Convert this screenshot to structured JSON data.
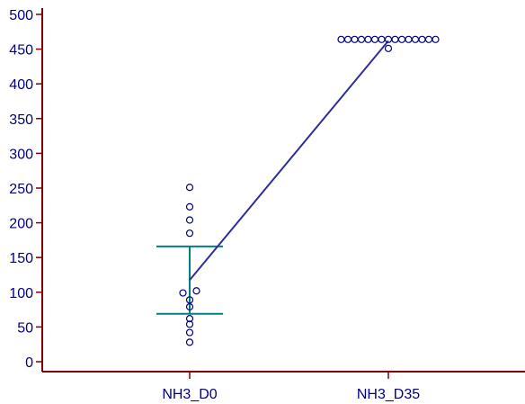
{
  "chart_data": {
    "type": "scatter",
    "title": "",
    "xlabel": "",
    "ylabel": "",
    "categories": [
      "NH3_D0",
      "NH3_D35"
    ],
    "ylim": [
      -8,
      510
    ],
    "yticks": [
      0,
      50,
      100,
      150,
      200,
      250,
      300,
      350,
      400,
      450,
      500
    ],
    "ytick_labels": [
      "0",
      "50",
      "100",
      "150",
      "200",
      "250",
      "300",
      "350",
      "400",
      "450",
      "500"
    ],
    "groups": [
      {
        "category": "NH3_D0",
        "points": [
          {
            "dx": 0,
            "y": 251
          },
          {
            "dx": 0,
            "y": 223
          },
          {
            "dx": 0,
            "y": 204
          },
          {
            "dx": 0,
            "y": 185
          },
          {
            "dx": -1,
            "y": 99
          },
          {
            "dx": 1,
            "y": 102
          },
          {
            "dx": 0,
            "y": 89
          },
          {
            "dx": 0,
            "y": 79
          },
          {
            "dx": 0,
            "y": 62
          },
          {
            "dx": 0,
            "y": 54
          },
          {
            "dx": 0,
            "y": 42
          },
          {
            "dx": 0,
            "y": 28
          }
        ],
        "mean": 117.5,
        "error_upper": 166,
        "error_lower": 69
      },
      {
        "category": "NH3_D35",
        "points": [
          {
            "dx": -7,
            "y": 464
          },
          {
            "dx": -6,
            "y": 464
          },
          {
            "dx": -5,
            "y": 464
          },
          {
            "dx": -4,
            "y": 464
          },
          {
            "dx": -3,
            "y": 464
          },
          {
            "dx": -2,
            "y": 464
          },
          {
            "dx": -1,
            "y": 464
          },
          {
            "dx": 0,
            "y": 464
          },
          {
            "dx": 1,
            "y": 464
          },
          {
            "dx": 2,
            "y": 464
          },
          {
            "dx": 3,
            "y": 464
          },
          {
            "dx": 4,
            "y": 464
          },
          {
            "dx": 5,
            "y": 464
          },
          {
            "dx": 6,
            "y": 464
          },
          {
            "dx": 7,
            "y": 464
          },
          {
            "dx": 0,
            "y": 451
          }
        ],
        "mean": 462,
        "error_upper": null,
        "error_lower": null
      }
    ],
    "mean_line": {
      "from": "NH3_D0",
      "to": "NH3_D35"
    },
    "colors": {
      "axis": "#800000",
      "tick_label": "#000080",
      "marker": "#000080",
      "mean_line": "#2e2e9a",
      "error_bar": "#008080"
    }
  }
}
